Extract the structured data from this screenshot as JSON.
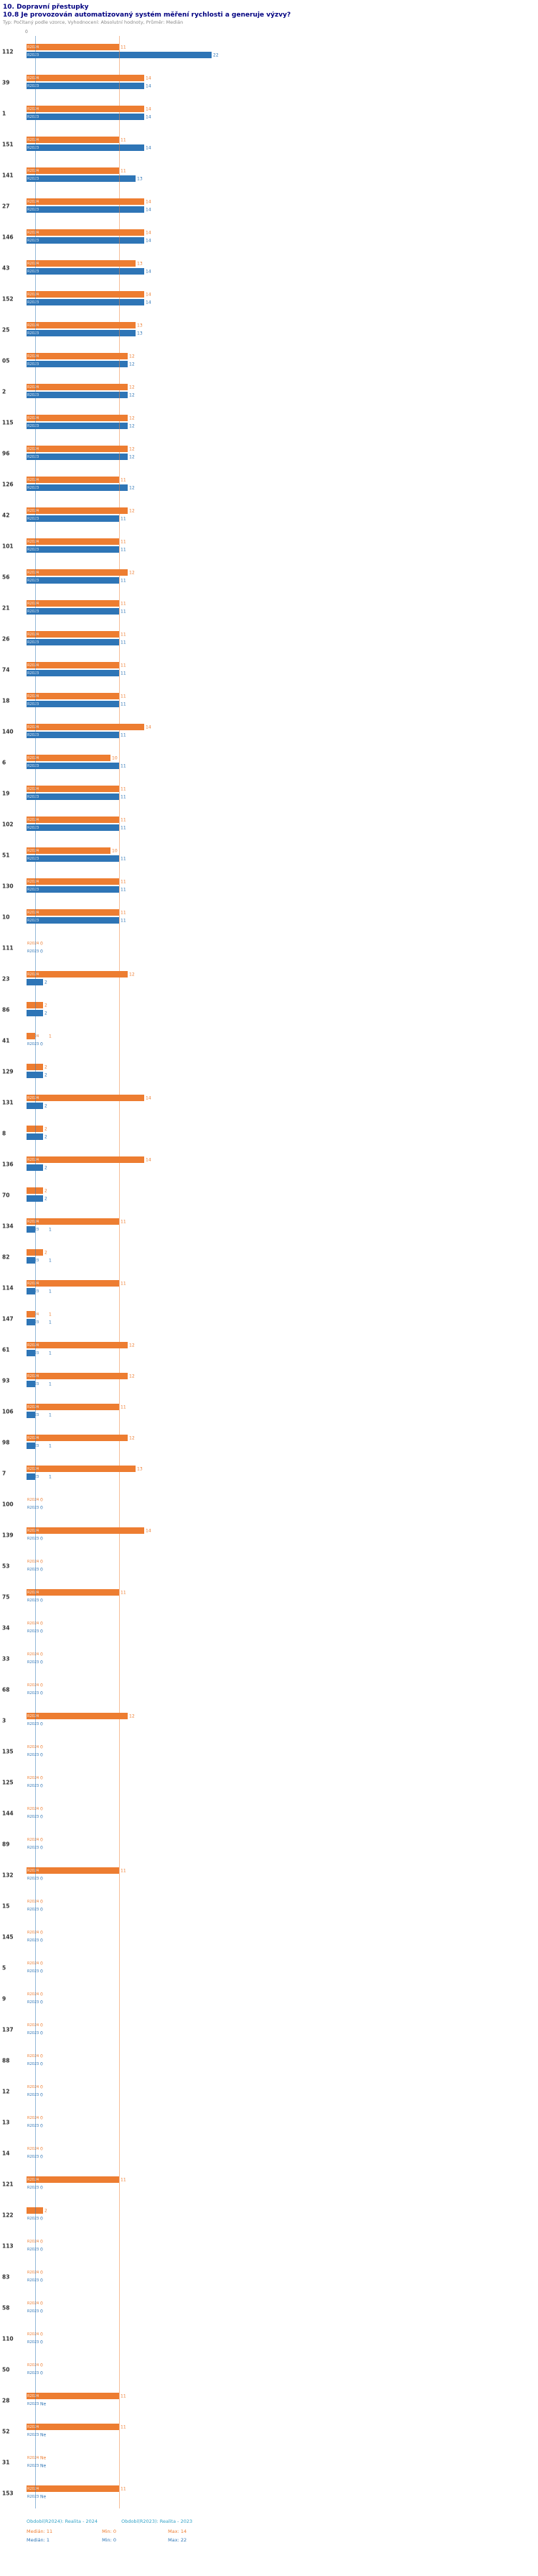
{
  "header": {
    "section_title": "10. Dopravní přestupky",
    "question_title": "10.8 Je provozován automatizovaný systém měření rychlosti a generuje výzvy?",
    "meta": "Typ: Počítaný podle vzorce, Vyhodnocení: Absolutní hodnoty, Průměr: Medián"
  },
  "chart_data": {
    "type": "bar",
    "orientation": "horizontal",
    "title": "10.8 Je provozován automatizovaný systém měření rychlosti a generuje výzvy?",
    "xlabel": "",
    "ylabel": "",
    "xlim": [
      0,
      22
    ],
    "x_zero_label": "0",
    "grid": false,
    "legend_position": "bottom",
    "series": [
      {
        "name": "R2024",
        "label": "R2024",
        "color": "#ED7D31",
        "median": 11,
        "min": 0,
        "max": 14
      },
      {
        "name": "R2023",
        "label": "R2023",
        "color": "#2E75B6",
        "median": 1,
        "min": 0,
        "max": 22
      }
    ],
    "rows": [
      {
        "category": "112",
        "values": [
          11,
          22
        ]
      },
      {
        "category": "39",
        "values": [
          14,
          14
        ]
      },
      {
        "category": "1",
        "values": [
          14,
          14
        ]
      },
      {
        "category": "151",
        "values": [
          11,
          14
        ]
      },
      {
        "category": "141",
        "values": [
          11,
          13
        ]
      },
      {
        "category": "27",
        "values": [
          14,
          14
        ]
      },
      {
        "category": "146",
        "values": [
          14,
          14
        ]
      },
      {
        "category": "43",
        "values": [
          13,
          14
        ]
      },
      {
        "category": "152",
        "values": [
          14,
          14
        ]
      },
      {
        "category": "25",
        "values": [
          13,
          13
        ]
      },
      {
        "category": "05",
        "values": [
          12,
          12
        ]
      },
      {
        "category": "2",
        "values": [
          12,
          12
        ]
      },
      {
        "category": "115",
        "values": [
          12,
          12
        ]
      },
      {
        "category": "96",
        "values": [
          12,
          12
        ]
      },
      {
        "category": "126",
        "values": [
          11,
          12
        ]
      },
      {
        "category": "42",
        "values": [
          12,
          11
        ]
      },
      {
        "category": "101",
        "values": [
          11,
          11
        ]
      },
      {
        "category": "56",
        "values": [
          12,
          11
        ]
      },
      {
        "category": "21",
        "values": [
          11,
          11
        ]
      },
      {
        "category": "26",
        "values": [
          11,
          11
        ]
      },
      {
        "category": "74",
        "values": [
          11,
          11
        ]
      },
      {
        "category": "18",
        "values": [
          11,
          11
        ]
      },
      {
        "category": "140",
        "values": [
          14,
          11
        ]
      },
      {
        "category": "6",
        "values": [
          10,
          11
        ]
      },
      {
        "category": "19",
        "values": [
          11,
          11
        ]
      },
      {
        "category": "102",
        "values": [
          11,
          11
        ]
      },
      {
        "category": "51",
        "values": [
          10,
          11
        ]
      },
      {
        "category": "130",
        "values": [
          11,
          11
        ]
      },
      {
        "category": "10",
        "values": [
          11,
          11
        ]
      },
      {
        "category": "111",
        "values": [
          0,
          0
        ]
      },
      {
        "category": "23",
        "values": [
          12,
          2
        ]
      },
      {
        "category": "86",
        "values": [
          2,
          2
        ]
      },
      {
        "category": "41",
        "values": [
          1,
          0
        ]
      },
      {
        "category": "129",
        "values": [
          2,
          2
        ]
      },
      {
        "category": "131",
        "values": [
          14,
          2
        ]
      },
      {
        "category": "8",
        "values": [
          2,
          2
        ]
      },
      {
        "category": "136",
        "values": [
          14,
          2
        ]
      },
      {
        "category": "70",
        "values": [
          2,
          2
        ]
      },
      {
        "category": "134",
        "values": [
          11,
          1
        ]
      },
      {
        "category": "82",
        "values": [
          2,
          1
        ]
      },
      {
        "category": "114",
        "values": [
          11,
          1
        ]
      },
      {
        "category": "147",
        "values": [
          1,
          1
        ]
      },
      {
        "category": "61",
        "values": [
          12,
          1
        ]
      },
      {
        "category": "93",
        "values": [
          12,
          1
        ]
      },
      {
        "category": "106",
        "values": [
          11,
          1
        ]
      },
      {
        "category": "98",
        "values": [
          12,
          1
        ]
      },
      {
        "category": "7",
        "values": [
          13,
          1
        ]
      },
      {
        "category": "100",
        "values": [
          0,
          0
        ]
      },
      {
        "category": "139",
        "values": [
          14,
          0
        ]
      },
      {
        "category": "53",
        "values": [
          0,
          0
        ]
      },
      {
        "category": "75",
        "values": [
          11,
          0
        ]
      },
      {
        "category": "34",
        "values": [
          0,
          0
        ]
      },
      {
        "category": "33",
        "values": [
          0,
          0
        ]
      },
      {
        "category": "68",
        "values": [
          0,
          0
        ]
      },
      {
        "category": "3",
        "values": [
          12,
          0
        ]
      },
      {
        "category": "135",
        "values": [
          0,
          0
        ]
      },
      {
        "category": "125",
        "values": [
          0,
          0
        ]
      },
      {
        "category": "144",
        "values": [
          0,
          0
        ]
      },
      {
        "category": "89",
        "values": [
          0,
          0
        ]
      },
      {
        "category": "132",
        "values": [
          11,
          0
        ]
      },
      {
        "category": "15",
        "values": [
          0,
          0
        ]
      },
      {
        "category": "145",
        "values": [
          0,
          0
        ]
      },
      {
        "category": "5",
        "values": [
          0,
          0
        ]
      },
      {
        "category": "9",
        "values": [
          0,
          0
        ]
      },
      {
        "category": "137",
        "values": [
          0,
          0
        ]
      },
      {
        "category": "88",
        "values": [
          0,
          0
        ]
      },
      {
        "category": "12",
        "values": [
          0,
          0
        ]
      },
      {
        "category": "13",
        "values": [
          0,
          0
        ]
      },
      {
        "category": "14",
        "values": [
          0,
          0
        ]
      },
      {
        "category": "121",
        "values": [
          11,
          0
        ]
      },
      {
        "category": "122",
        "values": [
          2,
          0
        ]
      },
      {
        "category": "113",
        "values": [
          0,
          0
        ]
      },
      {
        "category": "83",
        "values": [
          0,
          0
        ]
      },
      {
        "category": "58",
        "values": [
          0,
          0
        ]
      },
      {
        "category": "110",
        "values": [
          0,
          0
        ]
      },
      {
        "category": "50",
        "values": [
          0,
          0
        ]
      },
      {
        "category": "28",
        "values": [
          11,
          "Ne"
        ]
      },
      {
        "category": "52",
        "values": [
          11,
          "Ne"
        ]
      },
      {
        "category": "31",
        "values": [
          "Ne",
          "Ne"
        ]
      },
      {
        "category": "153",
        "values": [
          11,
          "Ne"
        ]
      }
    ]
  },
  "footer": {
    "legend_color": "#31a2c7",
    "legend": [
      {
        "label": "Období(R2024): Realita - 2024"
      },
      {
        "label": "Období(R2023): Realita - 2023"
      }
    ],
    "stats": [
      {
        "median": "Medián: 11",
        "min": "Min: 0",
        "max": "Max: 14",
        "color": "#ED7D31"
      },
      {
        "median": "Medián: 1",
        "min": "Min: 0",
        "max": "Max: 22",
        "color": "#2E75B6"
      }
    ]
  }
}
